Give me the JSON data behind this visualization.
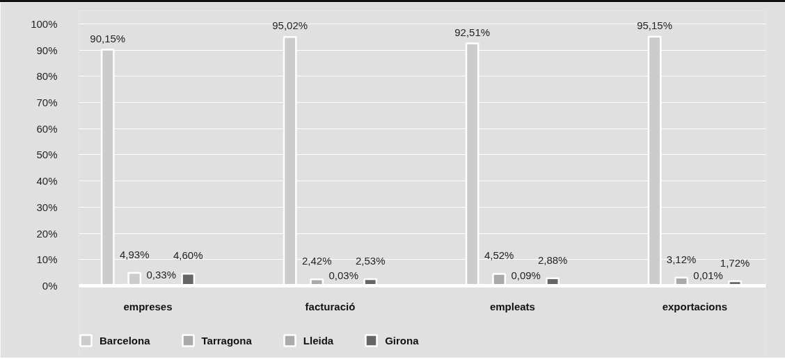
{
  "chart_data": {
    "type": "bar",
    "categories": [
      "empreses",
      "facturació",
      "empleats",
      "exportacions"
    ],
    "series": [
      {
        "name": "Barcelona",
        "color": "#cccccc",
        "values": [
          90.15,
          95.02,
          92.51,
          95.15
        ],
        "value_labels": [
          "90,15%",
          "95,02%",
          "92,51%",
          "95,15%"
        ]
      },
      {
        "name": "Tarragona",
        "color": "#aaaaaa",
        "colors": [
          "#cccccc",
          "#aaaaaa",
          "#aaaaaa",
          "#aaaaaa"
        ],
        "values": [
          4.93,
          2.42,
          4.52,
          3.12
        ],
        "value_labels": [
          "4,93%",
          "2,42%",
          "4,52%",
          "3,12%"
        ]
      },
      {
        "name": "Lleida",
        "color": "#aaaaaa",
        "values": [
          0.33,
          0.03,
          0.09,
          0.01
        ],
        "value_labels": [
          "0,33%",
          "0,03%",
          "0,09%",
          "0,01%"
        ]
      },
      {
        "name": "Girona",
        "color": "#666666",
        "values": [
          4.6,
          2.53,
          2.88,
          1.72
        ],
        "value_labels": [
          "4,60%",
          "2,53%",
          "2,88%",
          "1,72%"
        ]
      }
    ],
    "ylim": [
      0,
      105
    ],
    "yticks": [
      {
        "value": 0,
        "label": "0%"
      },
      {
        "value": 10,
        "label": "10%"
      },
      {
        "value": 20,
        "label": "20%"
      },
      {
        "value": 30,
        "label": "30%"
      },
      {
        "value": 40,
        "label": "40%"
      },
      {
        "value": 50,
        "label": "50%"
      },
      {
        "value": 60,
        "label": "60%"
      },
      {
        "value": 70,
        "label": "70%"
      },
      {
        "value": 80,
        "label": "80%"
      },
      {
        "value": 90,
        "label": "90%"
      },
      {
        "value": 100,
        "label": "100%"
      }
    ],
    "grid": "y",
    "legend": "bottom"
  }
}
